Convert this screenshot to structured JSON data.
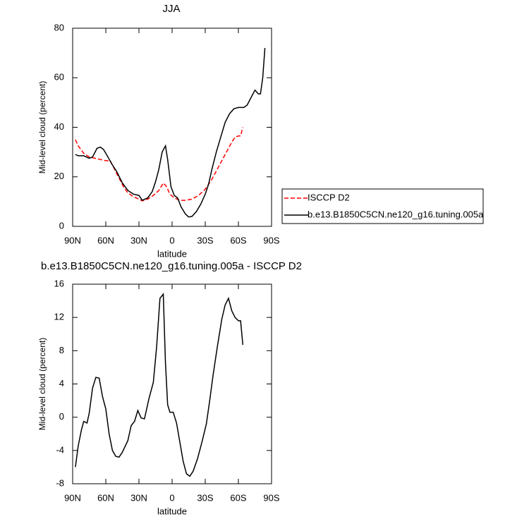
{
  "chart_data": [
    {
      "type": "line",
      "title": "JJA",
      "xlabel": "latitude",
      "ylabel": "Mid-level cloud (percent)",
      "xlim": [
        90,
        -90
      ],
      "ylim": [
        0,
        80
      ],
      "xticks": [
        {
          "value": 90,
          "label": "90N"
        },
        {
          "value": 60,
          "label": "60N"
        },
        {
          "value": 30,
          "label": "30N"
        },
        0,
        {
          "value": -30,
          "label": "30S"
        },
        {
          "value": -60,
          "label": "60S"
        },
        {
          "value": -90,
          "label": "90S"
        }
      ],
      "yticks": [
        0,
        20,
        40,
        60,
        80
      ],
      "legend": "right",
      "series": [
        {
          "name": "ISCCP D2",
          "color": "#ff0000",
          "dashed": true,
          "x": [
            87.5,
            85,
            80,
            75,
            70,
            65,
            60,
            56,
            52,
            48,
            44,
            40,
            35,
            30,
            27,
            22,
            17,
            12,
            8,
            5,
            2,
            -2,
            -7,
            -12,
            -18,
            -24,
            -30,
            -36,
            -42,
            -48,
            -54,
            -57,
            -60,
            -62,
            -64
          ],
          "values": [
            35,
            32.5,
            29.5,
            28,
            27.5,
            27,
            26.5,
            26.5,
            23,
            19.5,
            16,
            13.5,
            12,
            11,
            10.3,
            11,
            12.5,
            14.5,
            17.5,
            16,
            13,
            11.5,
            10.5,
            10.5,
            11,
            12.5,
            15,
            19,
            24,
            29,
            34,
            36,
            36.5,
            36.5,
            40
          ]
        },
        {
          "name": "b.e13.B1850C5CN.ne120_g16.tuning.005a",
          "color": "#000000",
          "dashed": false,
          "x": [
            87.5,
            85,
            80,
            75,
            72,
            68,
            65,
            62,
            58,
            55,
            50,
            45,
            40,
            35,
            30,
            27,
            22,
            18,
            15,
            12,
            9,
            6,
            4,
            1,
            -2,
            -5,
            -8,
            -12,
            -15,
            -18,
            -22,
            -26,
            -30,
            -33,
            -36,
            -40,
            -44,
            -48,
            -52,
            -56,
            -60,
            -65,
            -68,
            -72,
            -75,
            -78,
            -80,
            -82,
            -84
          ],
          "values": [
            29,
            28.5,
            28.5,
            27.5,
            28,
            31.5,
            32,
            31,
            28,
            25.5,
            22,
            17.5,
            14.5,
            13,
            12.5,
            10.5,
            11.5,
            14,
            18,
            23,
            30,
            32.5,
            27,
            16,
            12.5,
            11.5,
            8,
            5,
            3.8,
            4,
            6,
            9,
            13,
            17,
            23,
            30,
            36,
            42,
            45.5,
            47.5,
            48,
            48,
            49,
            52.5,
            55,
            53.5,
            53.5,
            60,
            72
          ]
        }
      ]
    },
    {
      "type": "line",
      "title": "b.e13.B1850C5CN.ne120_g16.tuning.005a - ISCCP D2",
      "xlabel": "latitude",
      "ylabel": "Mid-level cloud (percent)",
      "xlim": [
        90,
        -90
      ],
      "ylim": [
        -8,
        16
      ],
      "xticks": [
        {
          "value": 90,
          "label": "90N"
        },
        {
          "value": 60,
          "label": "60N"
        },
        {
          "value": 30,
          "label": "30N"
        },
        0,
        {
          "value": -30,
          "label": "30S"
        },
        {
          "value": -60,
          "label": "60S"
        },
        {
          "value": -90,
          "label": "90S"
        }
      ],
      "yticks": [
        -8,
        -4,
        0,
        4,
        8,
        12,
        16
      ],
      "series": [
        {
          "color": "#000000",
          "dashed": false,
          "x": [
            87.5,
            85,
            82,
            80,
            77,
            75,
            72,
            69,
            66,
            63,
            60,
            57,
            54,
            51,
            48,
            45,
            40,
            37,
            34,
            31,
            28,
            25,
            21,
            17,
            14,
            11,
            8,
            6,
            4,
            2,
            -1,
            -4,
            -7,
            -10,
            -13,
            -16,
            -19,
            -23,
            -27,
            -31,
            -34,
            -37,
            -41,
            -45,
            -48,
            -51,
            -54,
            -57,
            -60,
            -62,
            -64
          ],
          "values": [
            -6,
            -3.5,
            -1.5,
            -0.5,
            -0.7,
            0.5,
            3.5,
            4.8,
            4.7,
            2.5,
            1,
            -2,
            -4,
            -4.7,
            -4.8,
            -4.2,
            -2.8,
            -1,
            -0.5,
            0.8,
            -0.1,
            -0.2,
            2.2,
            4.2,
            8.5,
            14.3,
            14.8,
            6.5,
            1.5,
            0.6,
            0.6,
            -0.7,
            -3,
            -5.3,
            -6.8,
            -7.1,
            -6.5,
            -5,
            -3,
            -0.8,
            2,
            5,
            8.5,
            11.8,
            13.5,
            14.3,
            12.8,
            12,
            11.6,
            11.6,
            8.7
          ]
        }
      ]
    }
  ]
}
